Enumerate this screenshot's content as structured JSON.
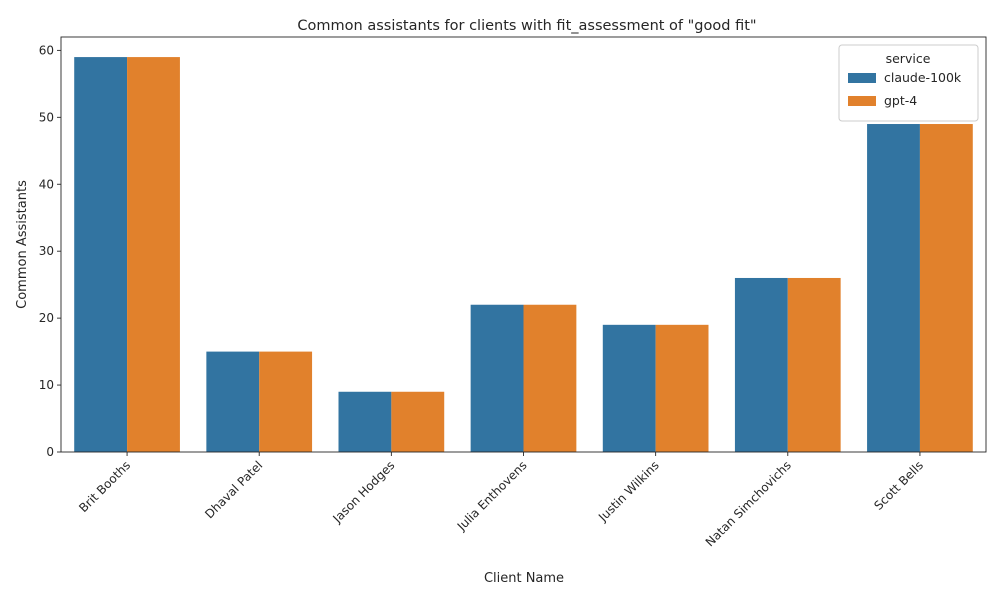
{
  "chart_data": {
    "type": "bar",
    "title": "Common assistants for clients with fit_assessment of \"good fit\"",
    "xlabel": "Client Name",
    "ylabel": "Common Assistants",
    "categories": [
      "Brit Booths",
      "Dhaval Patel",
      "Jason Hodges",
      "Julia Enthovens",
      "Justin Wilkins",
      "Natan Simchovichs",
      "Scott Bells"
    ],
    "series": [
      {
        "name": "claude-100k",
        "color": "#3274a1",
        "values": [
          59,
          15,
          9,
          22,
          19,
          26,
          49
        ]
      },
      {
        "name": "gpt-4",
        "color": "#e1812c",
        "values": [
          59,
          15,
          9,
          22,
          19,
          26,
          49
        ]
      }
    ],
    "ylim": [
      0,
      62
    ],
    "yticks": [
      0,
      10,
      20,
      30,
      40,
      50,
      60
    ],
    "legend_title": "service",
    "legend_position": "top-right",
    "grid": false
  }
}
